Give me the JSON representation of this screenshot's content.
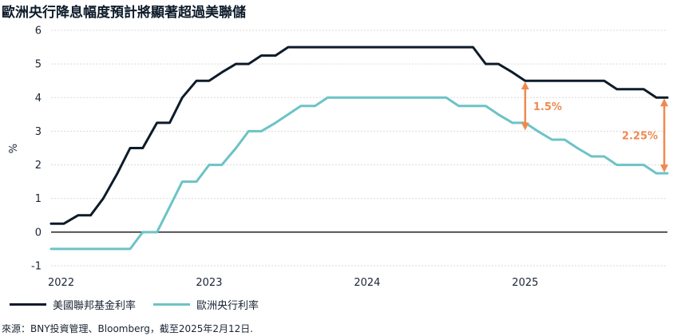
{
  "title": "歐洲央行降息幅度預計將顯著超過美聯儲",
  "source": "來源：BNY投資管理、Bloomberg，截至2025年2月12日.",
  "colors": {
    "fed": "#0d1b2a",
    "ecb": "#6cc3c6",
    "annotation": "#f0894f",
    "grid": "#d9d9d9",
    "zero": "#333333"
  },
  "chart_data": {
    "type": "line",
    "title": "歐洲央行降息幅度預計將顯著超過美聯儲",
    "xlabel": "",
    "ylabel": "%",
    "xlim": [
      2022.0,
      2025.9
    ],
    "ylim": [
      -1,
      6
    ],
    "yticks": [
      -1,
      0,
      1,
      2,
      3,
      4,
      5,
      6
    ],
    "xticks": [
      {
        "value": 2022,
        "label": "2022"
      },
      {
        "value": 2023,
        "label": "2023"
      },
      {
        "value": 2024,
        "label": "2024"
      },
      {
        "value": 2025,
        "label": "2025"
      }
    ],
    "grid": true,
    "legend": "bottom-left",
    "series": [
      {
        "name": "美國聯邦基金利率",
        "color": "#0d1b2a",
        "points": [
          [
            2022.0,
            0.25
          ],
          [
            2022.08,
            0.25
          ],
          [
            2022.17,
            0.5
          ],
          [
            2022.25,
            0.5
          ],
          [
            2022.33,
            1.0
          ],
          [
            2022.42,
            1.75
          ],
          [
            2022.5,
            2.5
          ],
          [
            2022.58,
            2.5
          ],
          [
            2022.67,
            3.25
          ],
          [
            2022.75,
            3.25
          ],
          [
            2022.83,
            4.0
          ],
          [
            2022.92,
            4.5
          ],
          [
            2023.0,
            4.5
          ],
          [
            2023.08,
            4.75
          ],
          [
            2023.17,
            5.0
          ],
          [
            2023.25,
            5.0
          ],
          [
            2023.33,
            5.25
          ],
          [
            2023.42,
            5.25
          ],
          [
            2023.5,
            5.5
          ],
          [
            2023.58,
            5.5
          ],
          [
            2024.58,
            5.5
          ],
          [
            2024.67,
            5.5
          ],
          [
            2024.75,
            5.0
          ],
          [
            2024.83,
            5.0
          ],
          [
            2024.92,
            4.75
          ],
          [
            2025.0,
            4.5
          ],
          [
            2025.08,
            4.5
          ],
          [
            2025.5,
            4.5
          ],
          [
            2025.58,
            4.25
          ],
          [
            2025.75,
            4.25
          ],
          [
            2025.83,
            4.0
          ],
          [
            2025.9,
            4.0
          ]
        ]
      },
      {
        "name": "歐洲央行利率",
        "color": "#6cc3c6",
        "points": [
          [
            2022.0,
            -0.5
          ],
          [
            2022.5,
            -0.5
          ],
          [
            2022.58,
            0.0
          ],
          [
            2022.67,
            0.0
          ],
          [
            2022.75,
            0.75
          ],
          [
            2022.83,
            1.5
          ],
          [
            2022.92,
            1.5
          ],
          [
            2023.0,
            2.0
          ],
          [
            2023.08,
            2.0
          ],
          [
            2023.17,
            2.5
          ],
          [
            2023.25,
            3.0
          ],
          [
            2023.33,
            3.0
          ],
          [
            2023.42,
            3.25
          ],
          [
            2023.5,
            3.5
          ],
          [
            2023.58,
            3.75
          ],
          [
            2023.67,
            3.75
          ],
          [
            2023.75,
            4.0
          ],
          [
            2024.42,
            4.0
          ],
          [
            2024.5,
            4.0
          ],
          [
            2024.58,
            3.75
          ],
          [
            2024.75,
            3.75
          ],
          [
            2024.83,
            3.5
          ],
          [
            2024.92,
            3.25
          ],
          [
            2025.0,
            3.25
          ],
          [
            2025.08,
            3.0
          ],
          [
            2025.17,
            2.75
          ],
          [
            2025.25,
            2.75
          ],
          [
            2025.33,
            2.5
          ],
          [
            2025.42,
            2.25
          ],
          [
            2025.5,
            2.25
          ],
          [
            2025.58,
            2.0
          ],
          [
            2025.75,
            2.0
          ],
          [
            2025.83,
            1.75
          ],
          [
            2025.9,
            1.75
          ]
        ]
      }
    ],
    "annotations": [
      {
        "label": "1.5%",
        "x": 2025.0,
        "y_top": 4.5,
        "y_bottom": 3.0
      },
      {
        "label": "2.25%",
        "x": 2025.88,
        "y_top": 4.0,
        "y_bottom": 1.75
      }
    ]
  }
}
